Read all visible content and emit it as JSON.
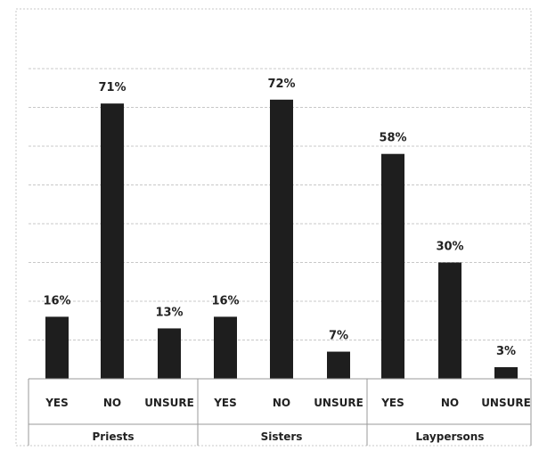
{
  "chart_data": {
    "type": "bar",
    "title": "",
    "xlabel": "",
    "ylabel": "",
    "ylim": [
      0,
      80
    ],
    "grid": true,
    "legend": "none",
    "color": "#1e1e1e",
    "groups": [
      {
        "name": "Priests",
        "categories": [
          "YES",
          "NO",
          "UNSURE"
        ],
        "values": [
          16,
          71,
          13
        ],
        "labels": [
          "16%",
          "71%",
          "13%"
        ]
      },
      {
        "name": "Sisters",
        "categories": [
          "YES",
          "NO",
          "UNSURE"
        ],
        "values": [
          16,
          72,
          7
        ],
        "labels": [
          "16%",
          "72%",
          "7%"
        ]
      },
      {
        "name": "Laypersons",
        "categories": [
          "YES",
          "NO",
          "UNSURE"
        ],
        "values": [
          58,
          30,
          3
        ],
        "labels": [
          "58%",
          "30%",
          "3%"
        ]
      }
    ]
  }
}
